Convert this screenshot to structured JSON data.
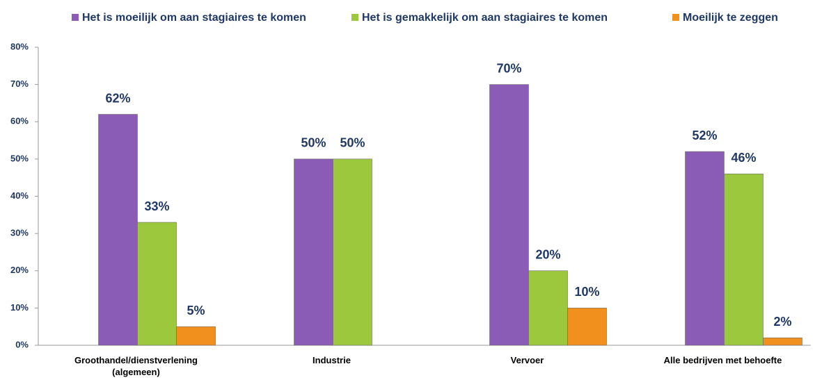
{
  "chart_data": {
    "type": "bar",
    "categories": [
      "Groothandel/dienstverlening (algemeen)",
      "Industrie",
      "Vervoer",
      "Alle bedrijven met behoefte"
    ],
    "series": [
      {
        "name": "Het is moeilijk om aan stagiaires te komen",
        "color": "#8b5cb5",
        "values": [
          62,
          50,
          70,
          52
        ],
        "value_labels": [
          "62%",
          "50%",
          "70%",
          "52%"
        ]
      },
      {
        "name": "Het is gemakkelijk om aan stagiaires te komen",
        "color": "#9cc83e",
        "values": [
          33,
          50,
          20,
          46
        ],
        "value_labels": [
          "33%",
          "50%",
          "20%",
          "46%"
        ]
      },
      {
        "name": "Moeilijk te zeggen",
        "color": "#f2901e",
        "values": [
          5,
          null,
          10,
          2
        ],
        "value_labels": [
          "5%",
          null,
          "10%",
          "2%"
        ]
      }
    ],
    "ylim": [
      0,
      80
    ],
    "yticks": [
      {
        "value": 0,
        "label": "0%"
      },
      {
        "value": 10,
        "label": "10%"
      },
      {
        "value": 20,
        "label": "20%"
      },
      {
        "value": 30,
        "label": "30%"
      },
      {
        "value": 40,
        "label": "40%"
      },
      {
        "value": 50,
        "label": "50%"
      },
      {
        "value": 60,
        "label": "60%"
      },
      {
        "value": 70,
        "label": "70%"
      },
      {
        "value": 80,
        "label": "80%"
      }
    ],
    "legend": "top"
  }
}
